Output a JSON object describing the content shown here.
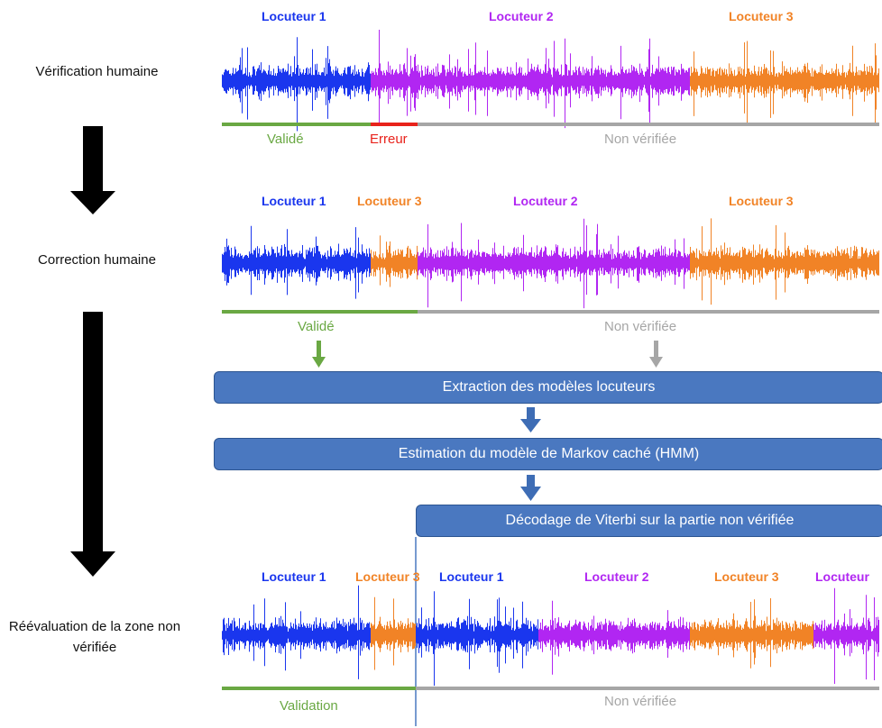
{
  "colors": {
    "speaker1": "#1a36ee",
    "speaker2": "#b126f2",
    "speaker3": "#f18326",
    "validated": "#6aa843",
    "error": "#e8221b",
    "unverified": "#a6a6a6",
    "process_box": "#4a78c0",
    "arrow": "#000000"
  },
  "stages": [
    {
      "label": "Vérification humaine",
      "speakers": [
        "Locuteur 1",
        "Locuteur 2",
        "Locuteur 3"
      ],
      "status": [
        "Validé",
        "Erreur",
        "Non vérifiée"
      ]
    },
    {
      "label": "Correction humaine",
      "speakers": [
        "Locuteur 1",
        "Locuteur 3",
        "Locuteur 2",
        "Locuteur 3"
      ],
      "status": [
        "Validé",
        "Non vérifiée"
      ]
    },
    {
      "label": "Réévaluation de la zone non vérifiée",
      "speakers": [
        "Locuteur 1",
        "Locuteur 3",
        "Locuteur 1",
        "Locuteur 2",
        "Locuteur 3",
        "Locuteur"
      ],
      "status": [
        "Validation",
        "Non vérifiée"
      ]
    }
  ],
  "process_steps": [
    "Extraction des modèles locuteurs",
    "Estimation du modèle de Markov caché (HMM)",
    "Décodage de Viterbi sur la partie non vérifiée"
  ]
}
